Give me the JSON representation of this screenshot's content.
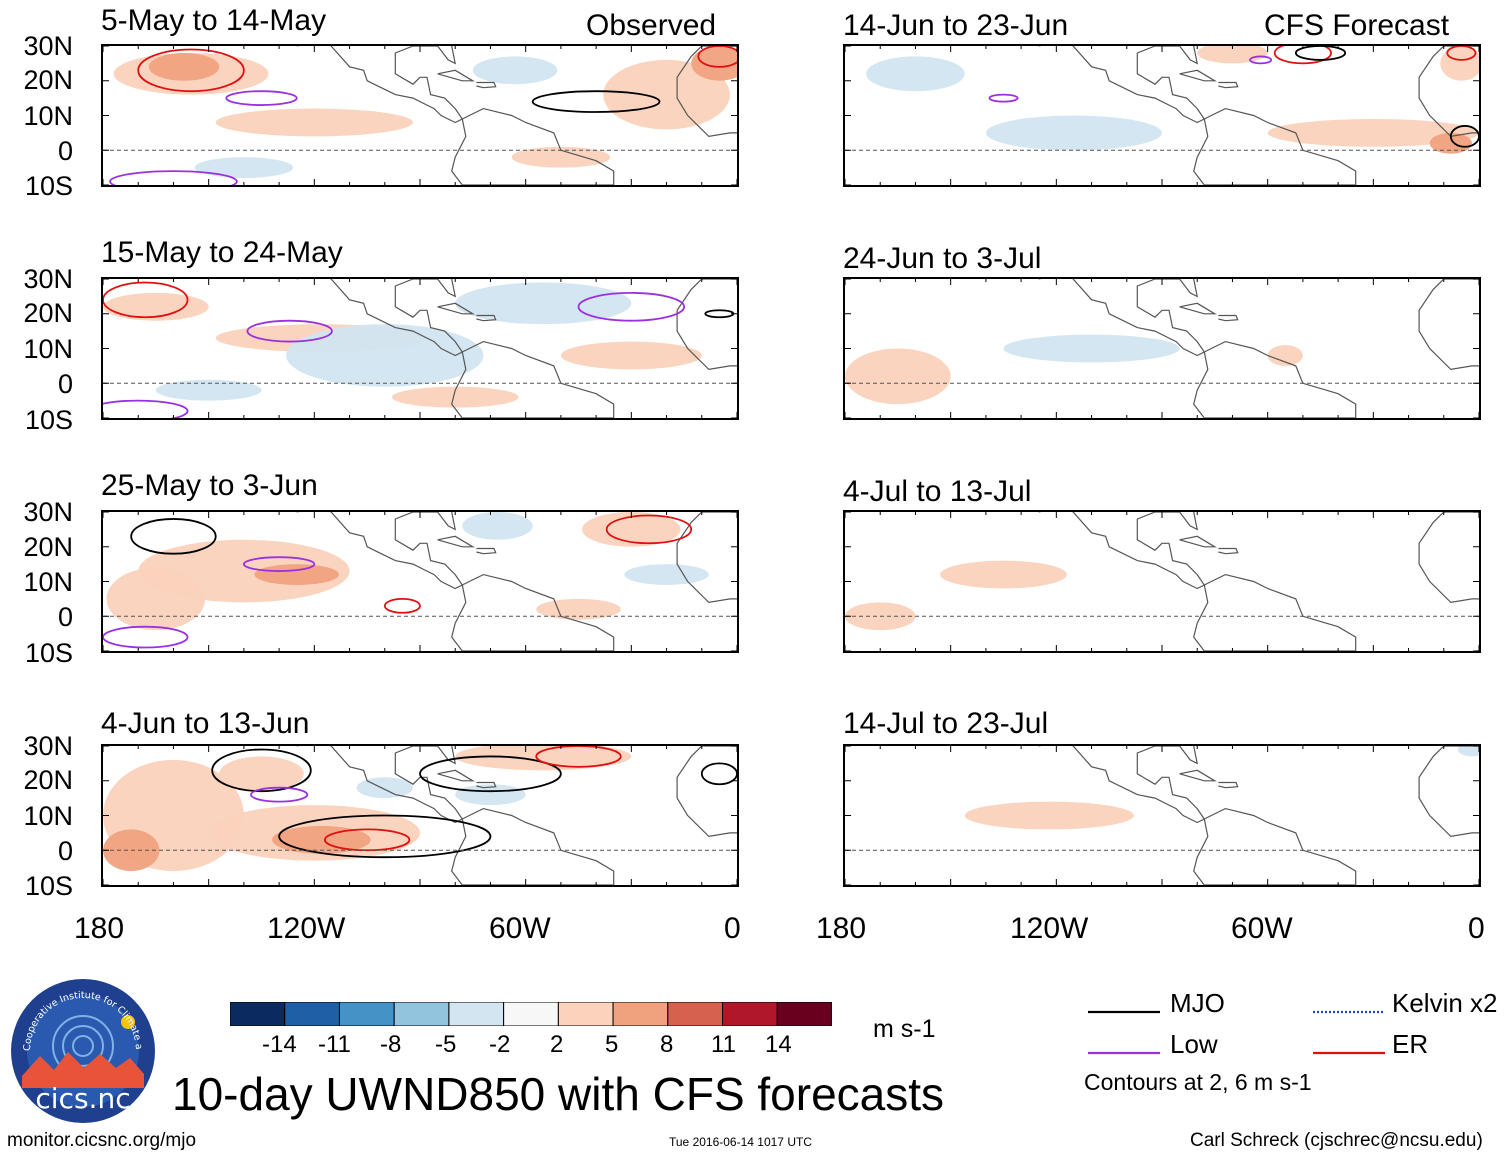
{
  "chart_data": {
    "type": "heatmap",
    "title": "10-day UWND850 with CFS forecasts",
    "variable": "UWND850",
    "units": "m s-1",
    "xaxis_labels": [
      "180",
      "120W",
      "60W",
      "0"
    ],
    "yaxis_labels": [
      "30N",
      "20N",
      "10N",
      "0",
      "10S"
    ],
    "xlim": [
      -180,
      0
    ],
    "ylim": [
      -10,
      30
    ],
    "column_headers": {
      "left": "Observed",
      "right": "CFS Forecast"
    },
    "panels": [
      {
        "period": "5-May to 14-May",
        "column": "left"
      },
      {
        "period": "15-May to 24-May",
        "column": "left"
      },
      {
        "period": "25-May to 3-Jun",
        "column": "left"
      },
      {
        "period": "4-Jun to 13-Jun",
        "column": "left"
      },
      {
        "period": "14-Jun to 23-Jun",
        "column": "right"
      },
      {
        "period": "24-Jun to 3-Jul",
        "column": "right"
      },
      {
        "period": "4-Jul to 13-Jul",
        "column": "right"
      },
      {
        "period": "14-Jul to 23-Jul",
        "column": "right"
      }
    ],
    "colorbar": {
      "ticks": [
        "-14",
        "-11",
        "-8",
        "-5",
        "-2",
        "2",
        "5",
        "8",
        "11",
        "14"
      ],
      "colors": [
        "#0b2b5e",
        "#1f5fa6",
        "#4592c6",
        "#93c4de",
        "#d2e5f0",
        "#f7f7f7",
        "#fbd2bc",
        "#f0a27e",
        "#d6614e",
        "#b0172a",
        "#67001f"
      ],
      "units": "m s-1"
    },
    "legend": [
      {
        "label": "MJO",
        "color": "#000000",
        "style": "solid"
      },
      {
        "label": "Kelvin x2",
        "color": "#2040d0",
        "style": "dashed"
      },
      {
        "label": "Low",
        "color": "#9b30e0",
        "style": "solid"
      },
      {
        "label": "ER",
        "color": "#e01010",
        "style": "solid"
      }
    ],
    "contour_note": "Contours at 2, 6 m s-1"
  },
  "logo": {
    "text": "cics.nc",
    "ring_text": "Cooperative Institute for Climate and Satellites"
  },
  "footer": {
    "left": "monitor.cicsnc.org/mjo",
    "center": "Tue 2016-06-14 1017 UTC",
    "right": "Carl Schreck (cjschrec@ncsu.edu)"
  }
}
